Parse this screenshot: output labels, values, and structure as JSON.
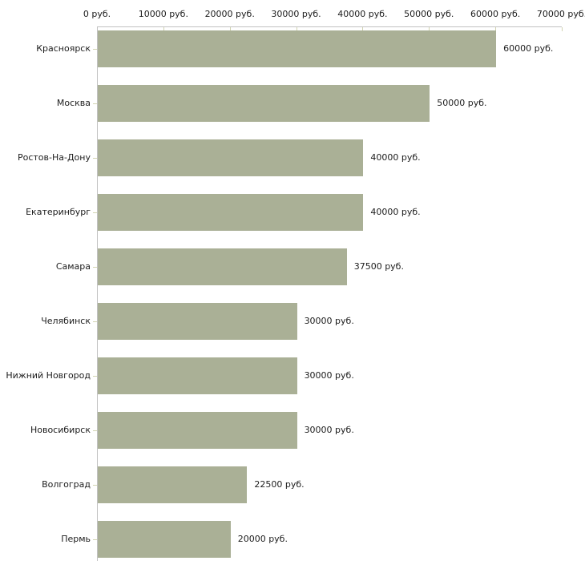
{
  "chart_data": {
    "type": "bar",
    "orientation": "horizontal",
    "title": "",
    "xlabel": "",
    "ylabel": "",
    "grid": false,
    "legend": false,
    "categories": [
      "Красноярск",
      "Москва",
      "Ростов-На-Дону",
      "Екатеринбург",
      "Самара",
      "Челябинск",
      "Нижний Новгород",
      "Новосибирск",
      "Волгоград",
      "Пермь"
    ],
    "values": [
      60000,
      50000,
      40000,
      40000,
      37500,
      30000,
      30000,
      30000,
      22500,
      20000
    ],
    "value_labels": [
      "60000 руб.",
      "50000 руб.",
      "40000 руб.",
      "40000 руб.",
      "37500 руб.",
      "30000 руб.",
      "30000 руб.",
      "30000 руб.",
      "22500 руб.",
      "20000 руб."
    ],
    "x_axis": {
      "position": "top",
      "min": 0,
      "max": 70000,
      "ticks": [
        0,
        10000,
        20000,
        30000,
        40000,
        50000,
        60000,
        70000
      ],
      "tick_labels": [
        "0 руб.",
        "10000 руб.",
        "20000 руб.",
        "30000 руб.",
        "40000 руб.",
        "50000 руб.",
        "60000 руб.",
        "70000 руб."
      ]
    },
    "colors": {
      "bar": "#aab096",
      "axis_line": "#c2c2c2",
      "tick_mark": "#d2d4b2",
      "text": "#1c1c1c"
    }
  }
}
